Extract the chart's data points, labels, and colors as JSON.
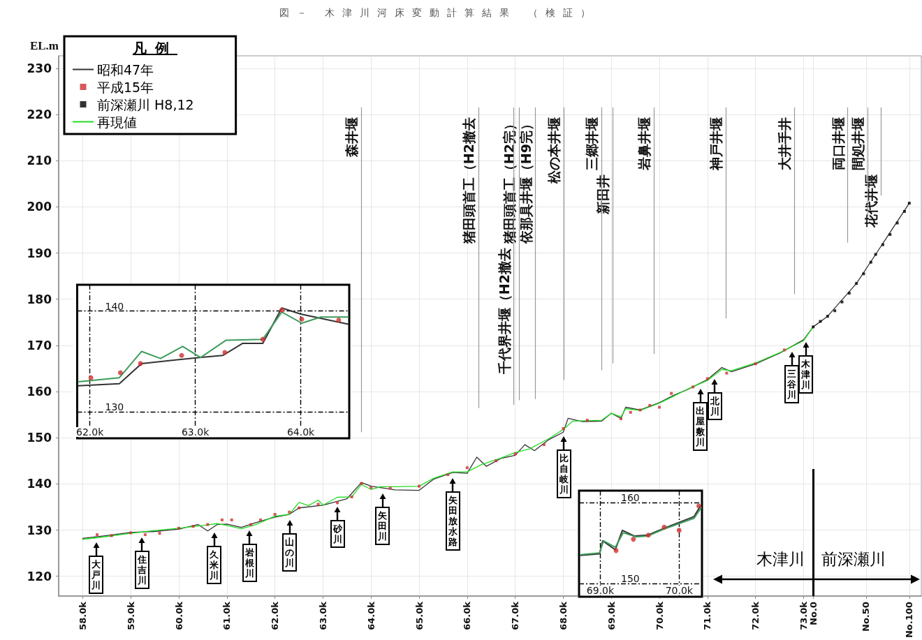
{
  "chart_data": [
    {
      "type": "line",
      "title": "図－ 木津川河床変動計算結果 （検証）",
      "ylabel": "EL.m",
      "legend_title": "凡例",
      "legend": "top left",
      "grid": true,
      "xlim": [
        57.5,
        75.45
      ],
      "xticks": [
        {
          "value": 58,
          "label": "58.0k"
        },
        {
          "value": 59,
          "label": "59.0k"
        },
        {
          "value": 60,
          "label": "60.0k"
        },
        {
          "value": 61,
          "label": "61.0k"
        },
        {
          "value": 62,
          "label": "62.0k"
        },
        {
          "value": 63,
          "label": "63.0k"
        },
        {
          "value": 64,
          "label": "64.0k"
        },
        {
          "value": 65,
          "label": "65.0k"
        },
        {
          "value": 66,
          "label": "66.0k"
        },
        {
          "value": 67,
          "label": "67.0k"
        },
        {
          "value": 68,
          "label": "68.0k"
        },
        {
          "value": 69,
          "label": "69.0k"
        },
        {
          "value": 70,
          "label": "70.0k"
        },
        {
          "value": 71,
          "label": "71.0k"
        },
        {
          "value": 72,
          "label": "72.0k"
        },
        {
          "value": 73,
          "label": "73.0k"
        },
        {
          "value": 73.2,
          "label": "No.0"
        },
        {
          "value": 74.3,
          "label": "No.50"
        },
        {
          "value": 75.2,
          "label": "No.100"
        }
      ],
      "ylim": [
        115.7,
        232.7
      ],
      "yticks": [
        120,
        130,
        140,
        150,
        160,
        170,
        180,
        190,
        200,
        210,
        220,
        230
      ],
      "series": [
        {
          "name": "昭和47年",
          "type": "line",
          "marker": "none",
          "color": "#333333",
          "x": [
            58.0,
            58.5,
            59.0,
            59.5,
            60.0,
            60.4,
            60.6,
            60.8,
            61.0,
            61.3,
            61.6,
            62.0,
            62.3,
            62.5,
            63.0,
            63.5,
            63.8,
            64.0,
            64.5,
            65.0,
            65.3,
            65.7,
            66.0,
            66.2,
            66.4,
            66.7,
            67.0,
            67.2,
            67.4,
            67.7,
            68.0,
            68.1,
            68.4,
            68.8,
            69.0,
            69.2,
            69.3,
            69.6,
            70.0,
            70.3,
            70.6,
            71.0,
            71.3,
            71.5,
            72.0,
            72.5,
            73.0,
            73.2,
            73.5,
            74.1,
            74.5,
            75.2
          ],
          "values": [
            128.2,
            128.8,
            129.5,
            129.7,
            130.2,
            131.2,
            129.8,
            131.2,
            131.3,
            130.6,
            131.6,
            132.8,
            133.4,
            134.8,
            135.4,
            136.8,
            140.3,
            139.5,
            138.7,
            138.6,
            141.0,
            142.5,
            142.3,
            145.8,
            143.8,
            145.5,
            146.2,
            148.5,
            147.2,
            149.6,
            151.2,
            154.2,
            153.5,
            153.6,
            155.3,
            154.2,
            156.6,
            156.0,
            157.6,
            159.2,
            160.5,
            162.6,
            165.2,
            164.3,
            166.0,
            168.3,
            171.2,
            174.0,
            176.3,
            183.4,
            189.7,
            200.8
          ]
        },
        {
          "name": "平成15年",
          "type": "scatter",
          "marker": "square",
          "color": "#d03030",
          "x": [
            58.3,
            58.6,
            59.0,
            59.3,
            59.6,
            60.0,
            60.3,
            60.6,
            60.9,
            61.1,
            61.5,
            61.7,
            62.0,
            62.3,
            62.5,
            62.9,
            63.3,
            63.6,
            63.8,
            64.0,
            64.4,
            65.0,
            65.6,
            66.0,
            66.6,
            67.0,
            67.6,
            68.0,
            68.5,
            69.2,
            69.4,
            69.6,
            69.8,
            70.0,
            70.25,
            70.7,
            71.0,
            71.4,
            72.0,
            72.6
          ],
          "values": [
            129.0,
            128.8,
            129.4,
            129.0,
            129.3,
            130.4,
            130.8,
            131.2,
            132.2,
            132.2,
            131.2,
            132.2,
            133.4,
            133.9,
            134.8,
            135.6,
            135.9,
            137.2,
            140.1,
            139.2,
            139.1,
            139.5,
            142.0,
            143.5,
            145.0,
            146.5,
            148.5,
            152.0,
            153.8,
            154.1,
            155.5,
            156.0,
            157.0,
            156.6,
            159.6,
            161.0,
            162.8,
            164.0,
            166.0,
            169.0
          ]
        },
        {
          "name": "前深瀬川 H8,12",
          "type": "scatter",
          "marker": "square",
          "color": "#000000",
          "x": [
            73.2,
            73.35,
            73.5,
            73.65,
            73.8,
            73.95,
            74.1,
            74.25,
            74.4,
            74.5,
            74.65,
            74.8,
            74.95,
            75.1,
            75.2
          ],
          "values": [
            174.0,
            175.2,
            176.3,
            177.5,
            179.4,
            181.3,
            183.4,
            185.5,
            188.0,
            189.7,
            191.8,
            194.0,
            196.5,
            199.0,
            200.8
          ]
        },
        {
          "name": "再現値",
          "type": "line",
          "marker": "none",
          "color": "#22dd22",
          "x": [
            58.0,
            58.5,
            59.0,
            59.5,
            60.0,
            60.5,
            60.8,
            61.0,
            61.3,
            61.6,
            62.0,
            62.3,
            62.5,
            62.7,
            62.9,
            63.0,
            63.3,
            63.6,
            63.8,
            64.0,
            64.2,
            64.5,
            65.0,
            65.3,
            65.7,
            66.0,
            66.3,
            66.7,
            67.0,
            67.3,
            67.7,
            68.0,
            68.2,
            68.8,
            69.0,
            69.2,
            69.3,
            69.6,
            70.0,
            70.3,
            70.6,
            71.0,
            71.3,
            71.5,
            72.0,
            72.5,
            73.0,
            73.2
          ],
          "values": [
            128.0,
            128.6,
            129.3,
            129.9,
            130.4,
            131.0,
            131.4,
            131.0,
            130.3,
            131.2,
            133.0,
            133.4,
            136.0,
            135.3,
            136.5,
            135.4,
            137.1,
            137.2,
            139.9,
            138.8,
            139.4,
            139.4,
            139.5,
            141.2,
            142.6,
            142.6,
            144.2,
            145.6,
            146.8,
            147.6,
            149.8,
            151.8,
            153.6,
            153.8,
            155.3,
            154.5,
            156.3,
            155.9,
            157.5,
            159.0,
            160.6,
            162.4,
            164.8,
            164.5,
            166.2,
            168.4,
            171.0,
            174.0
          ]
        }
      ],
      "ref_lines": [
        {
          "axis": "x",
          "value": 63.79,
          "label": "森井堰",
          "color": "#999999"
        },
        {
          "axis": "x",
          "value": 66.24,
          "label": "猪田頭首工（H2撤去",
          "color": "#999999"
        },
        {
          "axis": "x",
          "value": 67.08,
          "label": "猪田頭首工（H2完）",
          "color": "#999999"
        },
        {
          "axis": "x",
          "value": 66.97,
          "label": "千代界井堰（H2撤去",
          "color": "#999999"
        },
        {
          "axis": "x",
          "value": 67.42,
          "label": "依那具井堰（H9完）",
          "color": "#999999"
        },
        {
          "axis": "x",
          "value": 68.01,
          "label": "松の本井堰",
          "color": "#999999"
        },
        {
          "axis": "x",
          "value": 68.8,
          "label": "三郷井堰",
          "color": "#999999"
        },
        {
          "axis": "x",
          "value": 69.03,
          "label": "新田井",
          "color": "#999999"
        },
        {
          "axis": "x",
          "value": 69.89,
          "label": "岩鼻井堰",
          "color": "#999999"
        },
        {
          "axis": "x",
          "value": 71.38,
          "label": "神戸井堰",
          "color": "#999999"
        },
        {
          "axis": "x",
          "value": 72.81,
          "label": "大井手井",
          "color": "#999999"
        },
        {
          "axis": "x",
          "value": 73.92,
          "label": "両口井堰",
          "color": "#999999"
        },
        {
          "axis": "x",
          "value": 74.33,
          "label": "間処井堰",
          "color": "#999999"
        },
        {
          "axis": "x",
          "value": 74.61,
          "label": "花代井堰",
          "color": "#999999"
        },
        {
          "axis": "x",
          "value": 73.2,
          "color": "#000000"
        }
      ],
      "annotations": [
        {
          "text": "大戸川",
          "x": 58.28,
          "y": 128.5
        },
        {
          "text": "住吉川",
          "x": 59.23,
          "y": 129.6
        },
        {
          "text": "久米川",
          "x": 60.74,
          "y": 130.7
        },
        {
          "text": "岩根川",
          "x": 61.47,
          "y": 131.2
        },
        {
          "text": "山の川",
          "x": 62.31,
          "y": 133.4
        },
        {
          "text": "砂川",
          "x": 63.3,
          "y": 136.2
        },
        {
          "text": "矢田川",
          "x": 64.24,
          "y": 139.1
        },
        {
          "text": "矢田放水路",
          "x": 65.7,
          "y": 142.5
        },
        {
          "text": "比自岐川",
          "x": 68.01,
          "y": 151.5
        },
        {
          "text": "出屋敷川",
          "x": 70.85,
          "y": 161.8
        },
        {
          "text": "北川",
          "x": 71.15,
          "y": 163.9
        },
        {
          "text": "三谷川",
          "x": 72.76,
          "y": 169.8
        },
        {
          "text": "木津川",
          "x": 73.05,
          "y": 171.9
        },
        "木津川",
        "前深瀬川"
      ]
    },
    {
      "type": "line",
      "grid": true,
      "xlim": [
        61.88,
        64.46
      ],
      "ylim": [
        127.4,
        142.6
      ],
      "xticks": [
        {
          "value": 62,
          "label": "62.0k"
        },
        {
          "value": 63,
          "label": "63.0k"
        },
        {
          "value": 64,
          "label": "64.0k"
        }
      ],
      "yticks": [
        130,
        140
      ],
      "series": [
        {
          "type": "line",
          "marker": "none",
          "color": "#333333",
          "x": [
            61.89,
            62.28,
            62.49,
            63.04,
            63.26,
            63.45,
            63.64,
            63.82,
            64.0,
            64.45
          ],
          "values": [
            132.6,
            132.8,
            134.8,
            135.4,
            135.6,
            136.8,
            136.8,
            140.3,
            139.7,
            138.7
          ]
        },
        {
          "type": "line",
          "marker": "none",
          "color": "#3d9b5b",
          "x": [
            61.89,
            62.28,
            62.49,
            62.67,
            62.88,
            63.05,
            63.29,
            63.64,
            63.82,
            64.01,
            64.19,
            64.45
          ],
          "values": [
            133.0,
            133.4,
            136.0,
            135.3,
            136.5,
            135.4,
            137.1,
            137.2,
            139.9,
            138.8,
            139.4,
            139.4
          ]
        },
        {
          "type": "scatter",
          "marker": "circle",
          "color": "#d03030",
          "x": [
            62.01,
            62.29,
            62.48,
            62.87,
            63.28,
            63.64,
            63.82,
            64.01,
            64.36
          ],
          "values": [
            133.4,
            133.9,
            134.8,
            135.6,
            135.9,
            137.2,
            140.1,
            139.2,
            139.1
          ]
        }
      ]
    },
    {
      "type": "line",
      "grid": true,
      "xlim": [
        68.73,
        70.29
      ],
      "ylim": [
        148.4,
        161.5
      ],
      "xticks": [
        {
          "value": 69,
          "label": "69.0k"
        },
        {
          "value": 70,
          "label": "70.0k"
        }
      ],
      "yticks": [
        150,
        160
      ],
      "series": [
        {
          "type": "line",
          "marker": "none",
          "color": "#333333",
          "x": [
            68.75,
            68.99,
            69.03,
            69.19,
            69.28,
            69.43,
            69.6,
            69.82,
            70.19,
            70.27
          ],
          "values": [
            153.5,
            153.7,
            155.3,
            154.2,
            156.6,
            155.9,
            156.0,
            156.9,
            158.3,
            159.6
          ]
        },
        {
          "type": "line",
          "marker": "none",
          "color": "#3d9b5b",
          "x": [
            68.75,
            68.99,
            69.04,
            69.19,
            69.29,
            69.45,
            69.6,
            69.82,
            70.19,
            70.28
          ],
          "values": [
            153.6,
            153.8,
            155.3,
            154.5,
            156.3,
            155.8,
            155.9,
            156.8,
            158.1,
            159.4
          ]
        },
        {
          "type": "scatter",
          "marker": "circle",
          "color": "#d03030",
          "x": [
            69.2,
            69.42,
            69.61,
            69.81,
            70.0,
            70.25
          ],
          "values": [
            154.1,
            155.5,
            156.0,
            157.0,
            156.6,
            159.6
          ]
        }
      ]
    }
  ]
}
